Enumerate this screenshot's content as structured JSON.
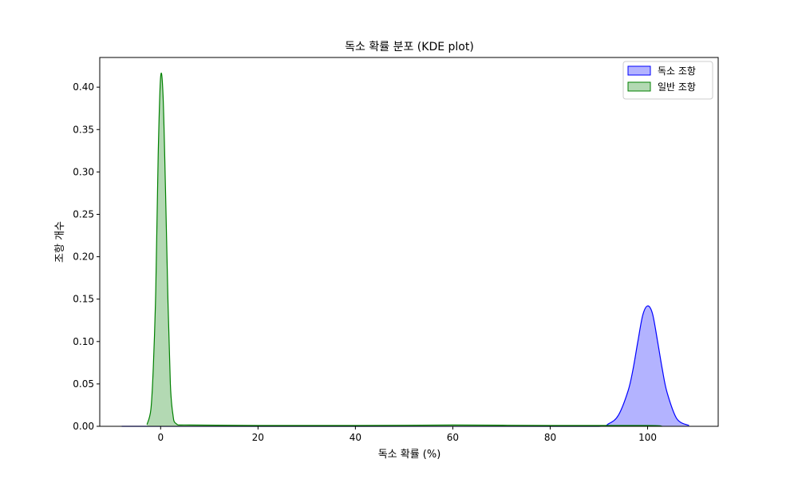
{
  "chart_data": {
    "type": "area",
    "title": "독소 확률 분포 (KDE plot)",
    "xlabel": "독소 확률 (%)",
    "ylabel": "조항 개수",
    "xlim": [
      -12.5,
      114.5
    ],
    "ylim": [
      0.0,
      0.435
    ],
    "x_ticks": [
      0,
      20,
      40,
      60,
      80,
      100
    ],
    "y_ticks": [
      0.0,
      0.05,
      0.1,
      0.15,
      0.2,
      0.25,
      0.3,
      0.35,
      0.4
    ],
    "y_tick_labels": [
      "0.00",
      "0.05",
      "0.10",
      "0.15",
      "0.20",
      "0.25",
      "0.30",
      "0.35",
      "0.40"
    ],
    "grid": false,
    "legend_position": "top-right",
    "series": [
      {
        "name": "독소 조항",
        "color": "#0000ff",
        "fill": "#b3b3ff",
        "x": [
          -8,
          0,
          20,
          40,
          60,
          80,
          90,
          92,
          94,
          96,
          97,
          98,
          99,
          100,
          101,
          102,
          103,
          104,
          106,
          108.5
        ],
        "y": [
          0.0,
          0.0,
          0.0,
          0.0,
          0.0,
          0.0,
          0.0,
          0.003,
          0.013,
          0.042,
          0.067,
          0.1,
          0.131,
          0.142,
          0.133,
          0.102,
          0.068,
          0.04,
          0.009,
          0.001
        ]
      },
      {
        "name": "일반 조항",
        "color": "#008000",
        "fill": "#b3d9b3",
        "x": [
          -2.8,
          -2,
          -1.5,
          -1,
          -0.5,
          0,
          0.5,
          1,
          1.5,
          2,
          2.5,
          3.2,
          6,
          20,
          40,
          60,
          80,
          100,
          103
        ],
        "y": [
          0.002,
          0.02,
          0.07,
          0.16,
          0.32,
          0.412,
          0.39,
          0.28,
          0.15,
          0.05,
          0.015,
          0.003,
          0.0015,
          0.001,
          0.001,
          0.0015,
          0.001,
          0.001,
          0.0
        ]
      }
    ]
  }
}
